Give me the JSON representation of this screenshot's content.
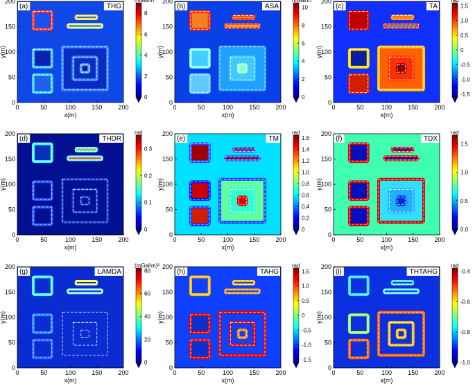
{
  "chart_data": [
    {
      "type": "heatmap",
      "label": "(a)",
      "title": "THG",
      "colorbar_unit": "mGal/m",
      "xlabel": "x(m)",
      "ylabel": "y(m)",
      "xlim": [
        0,
        200
      ],
      "ylim": [
        0,
        200
      ],
      "xticks": [
        0,
        50,
        100,
        150,
        200
      ],
      "yticks": [
        0,
        50,
        100,
        150,
        200
      ],
      "clim": [
        0,
        9
      ],
      "cticks": [
        0,
        2,
        4,
        6,
        8
      ]
    },
    {
      "type": "heatmap",
      "label": "(b)",
      "title": "ASA",
      "colorbar_unit": "mGal/m",
      "xlabel": "x(m)",
      "ylabel": "y(m)",
      "xlim": [
        0,
        200
      ],
      "ylim": [
        0,
        200
      ],
      "xticks": [
        0,
        50,
        100,
        150,
        200
      ],
      "yticks": [
        0,
        50,
        100,
        150,
        200
      ],
      "clim": [
        0,
        10.5
      ],
      "cticks": [
        0,
        2,
        4,
        6,
        8,
        10
      ]
    },
    {
      "type": "heatmap",
      "label": "(c)",
      "title": "TA",
      "colorbar_unit": "rad",
      "xlabel": "x(m)",
      "ylabel": "y(m)",
      "xlim": [
        0,
        200
      ],
      "ylim": [
        0,
        200
      ],
      "xticks": [
        0,
        50,
        100,
        150,
        200
      ],
      "yticks": [
        0,
        50,
        100,
        150,
        200
      ],
      "clim": [
        -1.6,
        1.6
      ],
      "cticks": [
        -1.5,
        {
          "value": -1,
          "label": "-1.0"
        },
        -0.5,
        0,
        0.5,
        {
          "value": 1,
          "label": "1.0"
        },
        1.5
      ]
    },
    {
      "type": "heatmap",
      "label": "(d)",
      "title": "THDR",
      "colorbar_unit": "rad",
      "xlabel": "x(m)",
      "ylabel": "y(m)",
      "xlim": [
        0,
        200
      ],
      "ylim": [
        0,
        200
      ],
      "xticks": [
        0,
        50,
        100,
        150,
        200
      ],
      "yticks": [
        0,
        50,
        100,
        150,
        200
      ],
      "clim": [
        0,
        0.35
      ],
      "cticks": [
        0,
        0.1,
        0.2,
        0.3
      ]
    },
    {
      "type": "heatmap",
      "label": "(e)",
      "title": "TM",
      "colorbar_unit": "rad",
      "xlabel": "x(m)",
      "ylabel": "y(m)",
      "xlim": [
        0,
        200
      ],
      "ylim": [
        0,
        200
      ],
      "xticks": [
        0,
        50,
        100,
        150,
        200
      ],
      "yticks": [
        0,
        50,
        100,
        150,
        200
      ],
      "clim": [
        0,
        1.65
      ],
      "cticks": [
        0,
        0.2,
        0.4,
        0.6,
        0.8,
        {
          "value": 1,
          "label": "1.0"
        },
        1.2,
        1.4,
        1.6
      ]
    },
    {
      "type": "heatmap",
      "label": "(f)",
      "title": "TDX",
      "colorbar_unit": "rad",
      "xlabel": "x(m)",
      "ylabel": "y(m)",
      "xlim": [
        0,
        200
      ],
      "ylim": [
        0,
        200
      ],
      "xticks": [
        0,
        50,
        100,
        150,
        200
      ],
      "yticks": [
        0,
        50,
        100,
        150,
        200
      ],
      "clim": [
        0,
        1.65
      ],
      "cticks": [
        {
          "value": 0,
          "label": "0.0"
        },
        0.5,
        {
          "value": 1,
          "label": "1.0"
        },
        1.5
      ]
    },
    {
      "type": "heatmap",
      "label": "(g)",
      "title": "LAMDA",
      "colorbar_unit": "(mGal/m)²",
      "xlabel": "x(m)",
      "ylabel": "y(m)",
      "xlim": [
        0,
        200
      ],
      "ylim": [
        0,
        200
      ],
      "xticks": [
        0,
        50,
        100,
        150,
        200
      ],
      "yticks": [
        0,
        50,
        100,
        150,
        200
      ],
      "clim": [
        0,
        82
      ],
      "cticks": [
        0,
        20,
        40,
        60,
        80
      ]
    },
    {
      "type": "heatmap",
      "label": "(h)",
      "title": "TAHG",
      "colorbar_unit": "rad",
      "xlabel": "x(m)",
      "ylabel": "y(m)",
      "xlim": [
        0,
        200
      ],
      "ylim": [
        0,
        200
      ],
      "xticks": [
        0,
        50,
        100,
        150,
        200
      ],
      "yticks": [
        0,
        50,
        100,
        150,
        200
      ],
      "clim": [
        -1.6,
        1.6
      ],
      "cticks": [
        -1.5,
        {
          "value": -1,
          "label": "-1.0"
        },
        -0.5,
        0,
        0.5,
        {
          "value": 1,
          "label": "1.0"
        },
        1.5
      ]
    },
    {
      "type": "heatmap",
      "label": "(i)",
      "title": "THTAHG",
      "colorbar_unit": "rad",
      "xlabel": "x(m)",
      "ylabel": "y(m)",
      "xlim": [
        0,
        200
      ],
      "ylim": [
        0,
        200
      ],
      "xticks": [
        0,
        50,
        100,
        150,
        200
      ],
      "yticks": [
        0,
        50,
        100,
        150,
        200
      ],
      "clim": [
        -1.0,
        -0.38
      ],
      "cticks": [
        {
          "value": -1,
          "label": "-1.0"
        },
        -0.8,
        -0.6,
        -0.4
      ]
    }
  ]
}
